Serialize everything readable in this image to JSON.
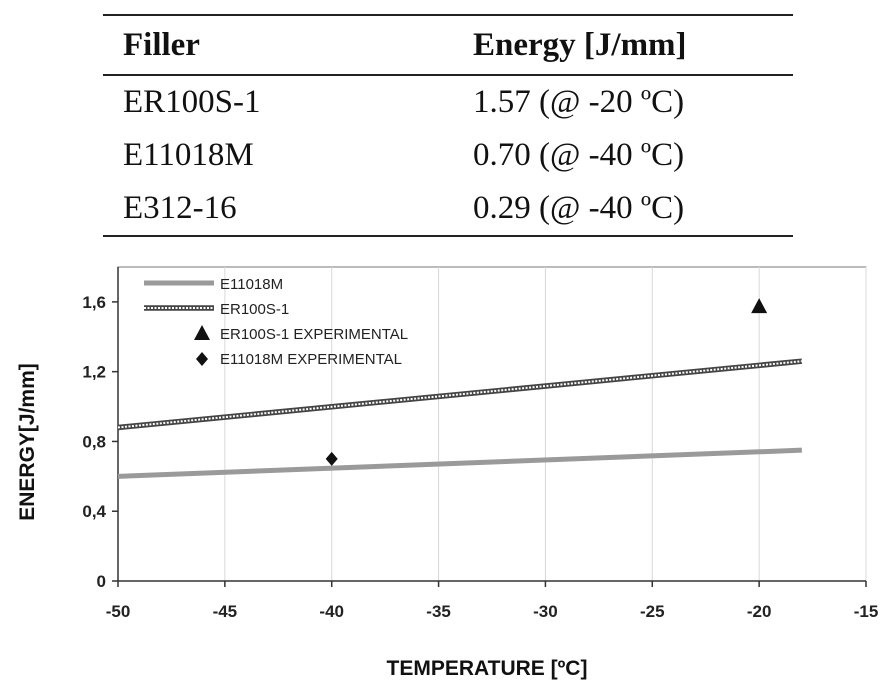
{
  "table": {
    "headers": [
      "Filler",
      "Energy [J/mm]"
    ],
    "rows": [
      [
        "ER100S-1",
        "1.57 (@ -20 ºC)"
      ],
      [
        "E11018M",
        "0.70 (@ -40 ºC)"
      ],
      [
        "E312-16",
        "0.29 (@ -40 ºC)"
      ]
    ]
  },
  "chart_data": {
    "type": "line",
    "title": "",
    "xlabel": "TEMPERATURE [ºC]",
    "ylabel": "ENERGY[J/mm]",
    "xlim": [
      -50,
      -15
    ],
    "ylim": [
      0,
      1.8
    ],
    "x_ticks": [
      -50,
      -45,
      -40,
      -35,
      -30,
      -25,
      -20,
      -15
    ],
    "x_tick_labels": [
      "-50",
      "-45",
      "-40",
      "-35",
      "-30",
      "-25",
      "-20",
      "-15"
    ],
    "y_ticks": [
      0,
      0.4,
      0.8,
      1.2,
      1.6
    ],
    "y_tick_labels": [
      "0",
      "0,4",
      "0,8",
      "1,2",
      "1,6"
    ],
    "grid": "vertical",
    "legend_position": "top-left",
    "series": [
      {
        "name": "E11018M",
        "kind": "line",
        "color": "#9a9a9a",
        "x": [
          -50,
          -18
        ],
        "y": [
          0.6,
          0.75
        ]
      },
      {
        "name": "ER100S-1",
        "kind": "line",
        "color": "#444444",
        "x": [
          -50,
          -18
        ],
        "y": [
          0.88,
          1.26
        ]
      },
      {
        "name": "ER100S-1 EXPERIMENTAL",
        "kind": "scatter",
        "marker": "triangle",
        "color": "#111111",
        "x": [
          -20
        ],
        "y": [
          1.57
        ]
      },
      {
        "name": "E11018M EXPERIMENTAL",
        "kind": "scatter",
        "marker": "diamond",
        "color": "#111111",
        "x": [
          -40
        ],
        "y": [
          0.7
        ]
      }
    ]
  }
}
